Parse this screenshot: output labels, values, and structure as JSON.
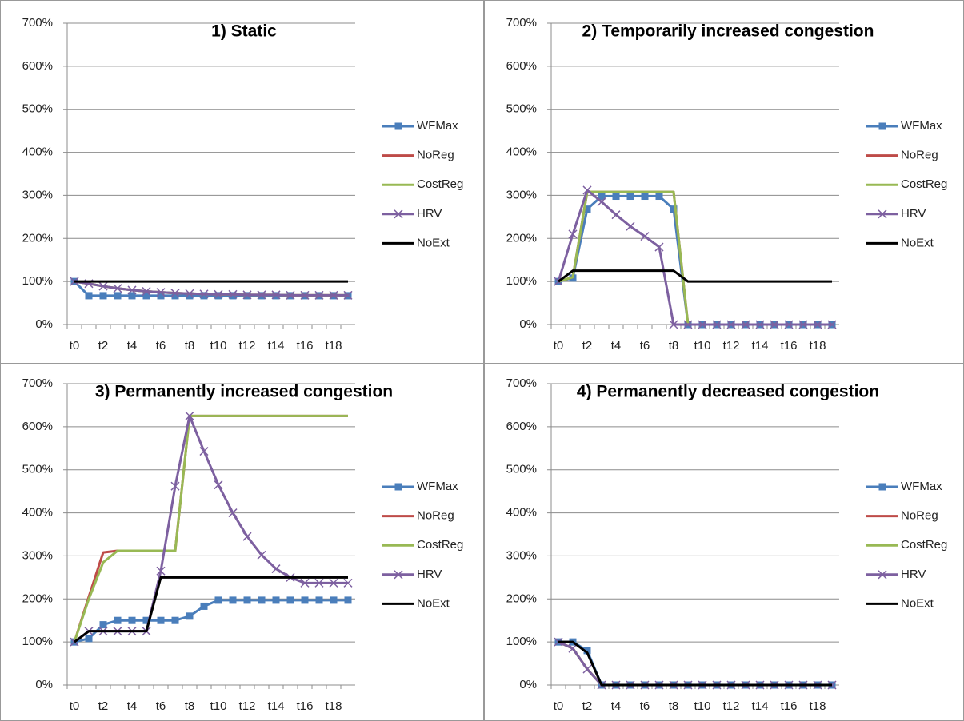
{
  "chart_data": [
    {
      "type": "line",
      "title": "1) Static",
      "categories": [
        "t0",
        null,
        "t2",
        null,
        "t4",
        null,
        "t6",
        null,
        "t8",
        null,
        "t10",
        null,
        "t12",
        null,
        "t14",
        null,
        "t16",
        null,
        "t18",
        null
      ],
      "ylim": [
        0,
        700
      ],
      "yticks": [
        {
          "value": 0,
          "label": "0%"
        },
        {
          "value": 100,
          "label": "100%"
        },
        {
          "value": 200,
          "label": "200%"
        },
        {
          "value": 300,
          "label": "300%"
        },
        {
          "value": 400,
          "label": "400%"
        },
        {
          "value": 500,
          "label": "500%"
        },
        {
          "value": 600,
          "label": "600%"
        },
        {
          "value": 700,
          "label": "700%"
        }
      ],
      "grid": true,
      "legend": "right",
      "series": [
        {
          "name": "WFMax",
          "color": "#4a7ebb",
          "marker": "square",
          "values": [
            100,
            67,
            67,
            67,
            67,
            67,
            67,
            67,
            67,
            67,
            67,
            67,
            67,
            67,
            67,
            67,
            67,
            67,
            67,
            67
          ]
        },
        {
          "name": "NoReg",
          "color": "#be4b48",
          "marker": null,
          "values": [
            100,
            95,
            89,
            84,
            80,
            77,
            75,
            73,
            72,
            71,
            70,
            70,
            69,
            69,
            69,
            68,
            68,
            68,
            68,
            68
          ]
        },
        {
          "name": "CostReg",
          "color": "#98b954",
          "marker": null,
          "values": [
            100,
            95,
            89,
            84,
            80,
            77,
            75,
            73,
            72,
            71,
            70,
            70,
            69,
            69,
            69,
            68,
            68,
            68,
            68,
            68
          ]
        },
        {
          "name": "HRV",
          "color": "#7d60a0",
          "marker": "x",
          "values": [
            100,
            95,
            89,
            84,
            80,
            77,
            75,
            73,
            72,
            71,
            70,
            70,
            69,
            69,
            69,
            68,
            68,
            68,
            68,
            68
          ]
        },
        {
          "name": "NoExt",
          "color": "#000000",
          "marker": null,
          "values": [
            100,
            100,
            100,
            100,
            100,
            100,
            100,
            100,
            100,
            100,
            100,
            100,
            100,
            100,
            100,
            100,
            100,
            100,
            100,
            100
          ]
        }
      ]
    },
    {
      "type": "line",
      "title": "2) Temporarily increased congestion",
      "categories": [
        "t0",
        null,
        "t2",
        null,
        "t4",
        null,
        "t6",
        null,
        "t8",
        null,
        "t10",
        null,
        "t12",
        null,
        "t14",
        null,
        "t16",
        null,
        "t18",
        null
      ],
      "ylim": [
        0,
        700
      ],
      "yticks": [
        {
          "value": 0,
          "label": "0%"
        },
        {
          "value": 100,
          "label": "100%"
        },
        {
          "value": 200,
          "label": "200%"
        },
        {
          "value": 300,
          "label": "300%"
        },
        {
          "value": 400,
          "label": "400%"
        },
        {
          "value": 500,
          "label": "500%"
        },
        {
          "value": 600,
          "label": "600%"
        },
        {
          "value": 700,
          "label": "700%"
        }
      ],
      "grid": true,
      "legend": "right",
      "series": [
        {
          "name": "WFMax",
          "color": "#4a7ebb",
          "marker": "square",
          "values": [
            100,
            108,
            268,
            298,
            298,
            298,
            298,
            298,
            268,
            0,
            0,
            0,
            0,
            0,
            0,
            0,
            0,
            0,
            0,
            0
          ]
        },
        {
          "name": "NoReg",
          "color": "#be4b48",
          "marker": null,
          "values": [
            100,
            110,
            308,
            308,
            308,
            308,
            308,
            308,
            308,
            0,
            0,
            0,
            0,
            0,
            0,
            0,
            0,
            0,
            0,
            0
          ]
        },
        {
          "name": "CostReg",
          "color": "#98b954",
          "marker": null,
          "values": [
            100,
            110,
            308,
            308,
            308,
            308,
            308,
            308,
            308,
            0,
            0,
            0,
            0,
            0,
            0,
            0,
            0,
            0,
            0,
            0
          ]
        },
        {
          "name": "HRV",
          "color": "#7d60a0",
          "marker": "x",
          "values": [
            100,
            210,
            312,
            285,
            255,
            228,
            205,
            180,
            0,
            0,
            0,
            0,
            0,
            0,
            0,
            0,
            0,
            0,
            0,
            0
          ]
        },
        {
          "name": "NoExt",
          "color": "#000000",
          "marker": null,
          "values": [
            100,
            125,
            125,
            125,
            125,
            125,
            125,
            125,
            125,
            100,
            100,
            100,
            100,
            100,
            100,
            100,
            100,
            100,
            100,
            100
          ]
        }
      ]
    },
    {
      "type": "line",
      "title": "3) Permanently increased congestion",
      "categories": [
        "t0",
        null,
        "t2",
        null,
        "t4",
        null,
        "t6",
        null,
        "t8",
        null,
        "t10",
        null,
        "t12",
        null,
        "t14",
        null,
        "t16",
        null,
        "t18",
        null
      ],
      "ylim": [
        0,
        700
      ],
      "yticks": [
        {
          "value": 0,
          "label": "0%"
        },
        {
          "value": 100,
          "label": "100%"
        },
        {
          "value": 200,
          "label": "200%"
        },
        {
          "value": 300,
          "label": "300%"
        },
        {
          "value": 400,
          "label": "400%"
        },
        {
          "value": 500,
          "label": "500%"
        },
        {
          "value": 600,
          "label": "600%"
        },
        {
          "value": 700,
          "label": "700%"
        }
      ],
      "grid": true,
      "legend": "right",
      "series": [
        {
          "name": "WFMax",
          "color": "#4a7ebb",
          "marker": "square",
          "values": [
            100,
            108,
            140,
            150,
            150,
            150,
            150,
            150,
            160,
            183,
            197,
            197,
            197,
            197,
            197,
            197,
            197,
            197,
            197,
            197
          ]
        },
        {
          "name": "NoReg",
          "color": "#be4b48",
          "marker": null,
          "values": [
            100,
            205,
            308,
            312,
            312,
            312,
            312,
            312,
            625,
            625,
            625,
            625,
            625,
            625,
            625,
            625,
            625,
            625,
            625,
            625
          ]
        },
        {
          "name": "CostReg",
          "color": "#98b954",
          "marker": null,
          "values": [
            100,
            200,
            285,
            312,
            312,
            312,
            312,
            312,
            625,
            625,
            625,
            625,
            625,
            625,
            625,
            625,
            625,
            625,
            625,
            625
          ]
        },
        {
          "name": "HRV",
          "color": "#7d60a0",
          "marker": "x",
          "values": [
            100,
            125,
            125,
            125,
            125,
            125,
            265,
            462,
            625,
            543,
            465,
            400,
            345,
            302,
            270,
            250,
            237,
            237,
            237,
            237
          ]
        },
        {
          "name": "NoExt",
          "color": "#000000",
          "marker": null,
          "values": [
            100,
            125,
            125,
            125,
            125,
            125,
            250,
            250,
            250,
            250,
            250,
            250,
            250,
            250,
            250,
            250,
            250,
            250,
            250,
            250
          ]
        }
      ]
    },
    {
      "type": "line",
      "title": "4) Permanently decreased congestion",
      "categories": [
        "t0",
        null,
        "t2",
        null,
        "t4",
        null,
        "t6",
        null,
        "t8",
        null,
        "t10",
        null,
        "t12",
        null,
        "t14",
        null,
        "t16",
        null,
        "t18",
        null
      ],
      "ylim": [
        0,
        700
      ],
      "yticks": [
        {
          "value": 0,
          "label": "0%"
        },
        {
          "value": 100,
          "label": "100%"
        },
        {
          "value": 200,
          "label": "200%"
        },
        {
          "value": 300,
          "label": "300%"
        },
        {
          "value": 400,
          "label": "400%"
        },
        {
          "value": 500,
          "label": "500%"
        },
        {
          "value": 600,
          "label": "600%"
        },
        {
          "value": 700,
          "label": "700%"
        }
      ],
      "grid": true,
      "legend": "right",
      "series": [
        {
          "name": "WFMax",
          "color": "#4a7ebb",
          "marker": "square",
          "values": [
            100,
            100,
            80,
            0,
            0,
            0,
            0,
            0,
            0,
            0,
            0,
            0,
            0,
            0,
            0,
            0,
            0,
            0,
            0,
            0
          ]
        },
        {
          "name": "NoReg",
          "color": "#be4b48",
          "marker": null,
          "values": [
            100,
            85,
            37,
            0,
            0,
            0,
            0,
            0,
            0,
            0,
            0,
            0,
            0,
            0,
            0,
            0,
            0,
            0,
            0,
            0
          ]
        },
        {
          "name": "CostReg",
          "color": "#98b954",
          "marker": null,
          "values": [
            100,
            85,
            37,
            0,
            0,
            0,
            0,
            0,
            0,
            0,
            0,
            0,
            0,
            0,
            0,
            0,
            0,
            0,
            0,
            0
          ]
        },
        {
          "name": "HRV",
          "color": "#7d60a0",
          "marker": "x",
          "values": [
            100,
            85,
            37,
            0,
            0,
            0,
            0,
            0,
            0,
            0,
            0,
            0,
            0,
            0,
            0,
            0,
            0,
            0,
            0,
            0
          ]
        },
        {
          "name": "NoExt",
          "color": "#000000",
          "marker": null,
          "values": [
            100,
            100,
            75,
            0,
            0,
            0,
            0,
            0,
            0,
            0,
            0,
            0,
            0,
            0,
            0,
            0,
            0,
            0,
            0,
            0
          ]
        }
      ]
    }
  ]
}
